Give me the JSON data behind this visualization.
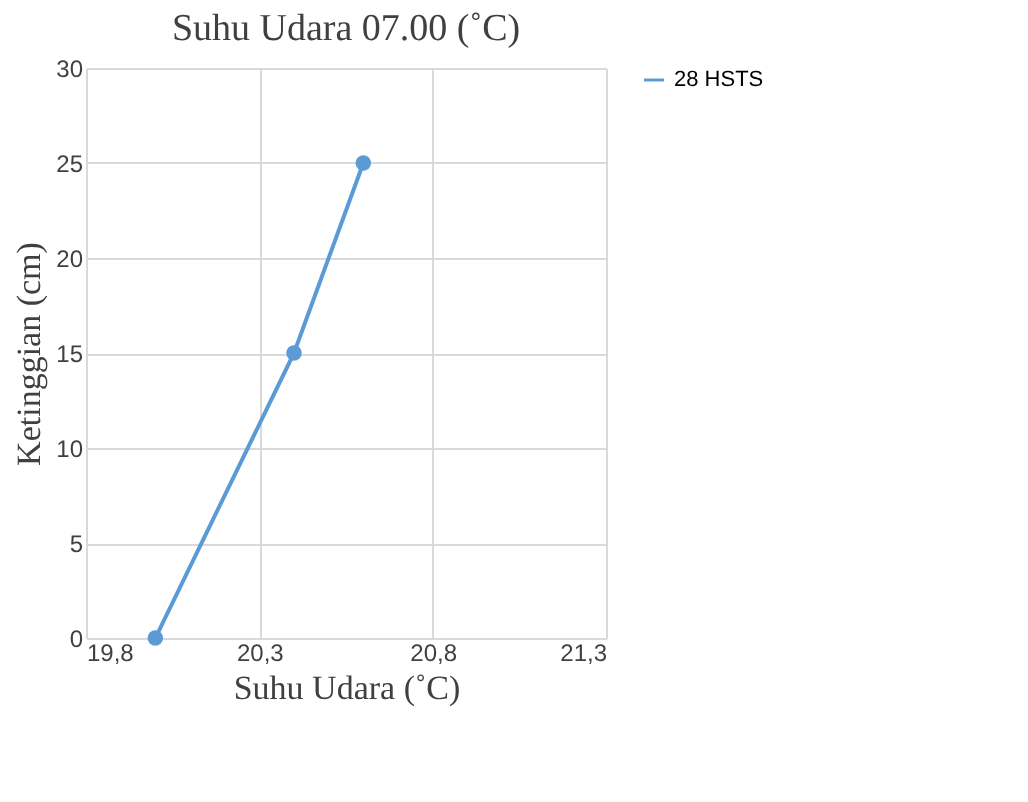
{
  "chart_data": {
    "type": "line",
    "title": "Suhu Udara 07.00 (˚C)",
    "xlabel": "Suhu Udara (˚C)",
    "ylabel": "Ketinggian (cm)",
    "x": [
      20.0,
      20.4,
      20.6
    ],
    "series": [
      {
        "name": "28 HSTS",
        "color": "#5b9bd5",
        "values": [
          0,
          15,
          25
        ]
      }
    ],
    "xlim": [
      19.8,
      21.3
    ],
    "xticks": [
      {
        "value": 19.8,
        "label": "19,8"
      },
      {
        "value": 20.3,
        "label": "20,3"
      },
      {
        "value": 20.8,
        "label": "20,8"
      },
      {
        "value": 21.3,
        "label": "21,3"
      }
    ],
    "ylim": [
      0,
      30
    ],
    "yticks": [
      0,
      5,
      10,
      15,
      20,
      25,
      30
    ],
    "grid": true,
    "legend": "right",
    "marker": "circle",
    "line_style": "solid"
  }
}
